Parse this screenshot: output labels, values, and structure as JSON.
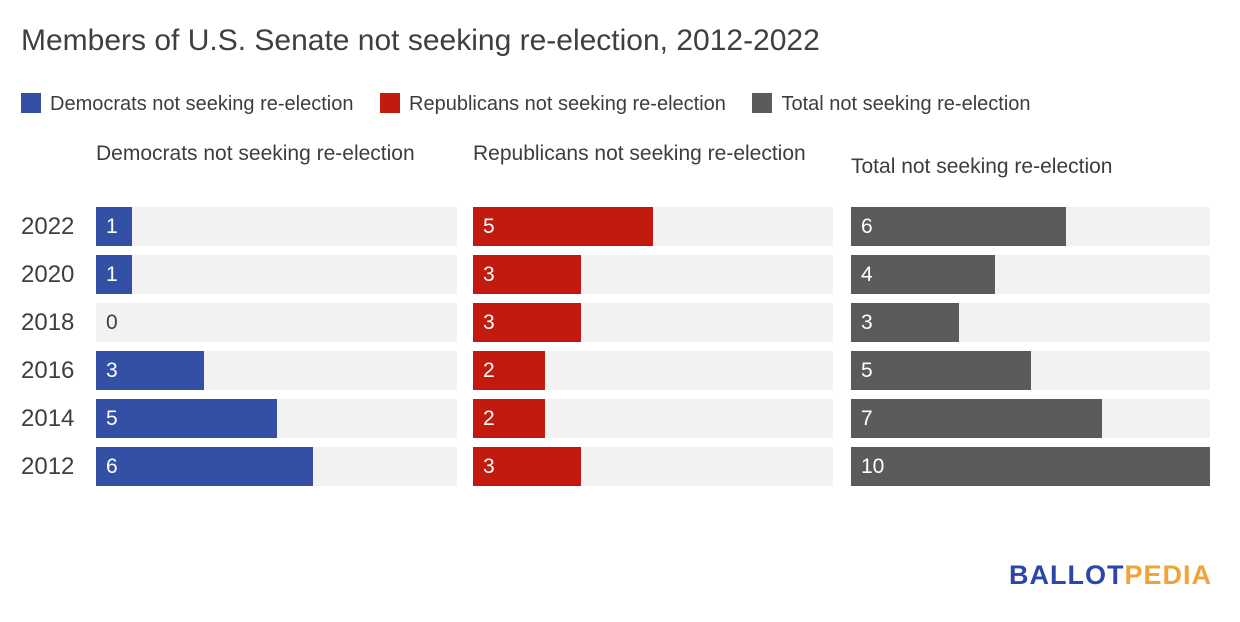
{
  "title": "Members of U.S. Senate not seeking re-election, 2012-2022",
  "colors": {
    "democrat": "#3350a4",
    "republican": "#c01b0e",
    "total": "#5b5b5b",
    "track": "#f2f2f2",
    "text": "#3f3f3f",
    "logo_blue": "#2b46ad",
    "logo_orange": "#f0a339"
  },
  "legend": {
    "items": [
      {
        "label": "Democrats not seeking re-election",
        "color": "#3350a4"
      },
      {
        "label": "Republicans not seeking re-election",
        "color": "#c01b0e"
      },
      {
        "label": "Total not seeking re-election",
        "color": "#5b5b5b"
      }
    ]
  },
  "chart_data": {
    "type": "bar",
    "orientation": "horizontal",
    "title": "Members of U.S. Senate not seeking re-election, 2012-2022",
    "categories": [
      "2022",
      "2020",
      "2018",
      "2016",
      "2014",
      "2012"
    ],
    "series": [
      {
        "name": "Democrats not seeking re-election",
        "color": "#3350a4",
        "values": [
          1,
          1,
          0,
          3,
          5,
          6
        ]
      },
      {
        "name": "Republicans not seeking re-election",
        "color": "#c01b0e",
        "values": [
          5,
          3,
          3,
          2,
          2,
          3
        ]
      },
      {
        "name": "Total not seeking re-election",
        "color": "#5b5b5b",
        "values": [
          6,
          4,
          3,
          5,
          7,
          10
        ]
      }
    ],
    "xlim": [
      0,
      10
    ],
    "grid": false,
    "legend_position": "top",
    "value_labels": "inside-left"
  },
  "logo": {
    "part1": "BALLOT",
    "part2": "PEDIA"
  }
}
